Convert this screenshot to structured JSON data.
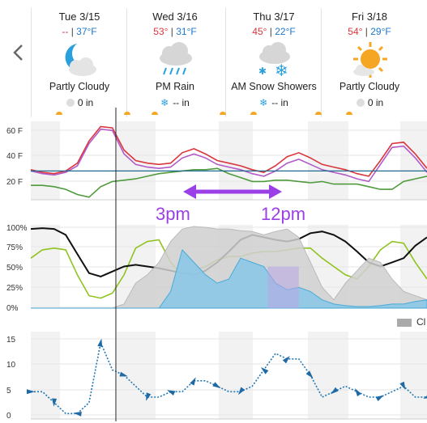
{
  "days": [
    {
      "label": "Tue 3/15",
      "hi": "--",
      "lo": "37°F",
      "condition": "Partly Cloudy",
      "precip": "0 in",
      "icon": "moon-cloud-icon",
      "precip_icon": "precip-dot-icon"
    },
    {
      "label": "Wed 3/16",
      "hi": "53°",
      "lo": "31°F",
      "condition": "PM Rain",
      "precip": "-- in",
      "icon": "rain-cloud-icon",
      "precip_icon": "snowflake-icon"
    },
    {
      "label": "Thu 3/17",
      "hi": "45°",
      "lo": "22°F",
      "condition": "AM Snow Showers",
      "precip": "-- in",
      "icon": "snow-cloud-icon",
      "precip_icon": "snowflake-icon"
    },
    {
      "label": "Fri 3/18",
      "hi": "54°",
      "lo": "29°F",
      "condition": "Partly Cloudy",
      "precip": "0 in",
      "icon": "sun-cloud-icon",
      "precip_icon": "precip-dot-icon"
    }
  ],
  "separator": "|",
  "nav": {
    "prev_icon": "chevron-left-icon"
  },
  "annotation": {
    "left_label": "3pm",
    "right_label": "12pm",
    "color": "#9b3fe6"
  },
  "colors": {
    "high": "#d9363e",
    "low": "#1f77c9",
    "annotation": "#9b3fe6"
  },
  "legend": {
    "label": "Cl"
  },
  "chart_data": [
    {
      "type": "line",
      "yticks": [
        "60 F",
        "40 F",
        "20 F"
      ],
      "ylim": [
        10,
        70
      ],
      "x_hours": [
        0,
        3,
        6,
        9,
        12,
        15,
        18,
        21,
        24,
        27,
        30,
        33,
        36,
        39,
        42,
        45,
        48,
        51,
        54,
        57,
        60,
        63,
        66,
        69,
        72,
        75,
        78,
        81,
        84,
        87,
        90,
        93,
        96,
        99,
        102
      ],
      "series": [
        {
          "id": "temperature",
          "color": "#d9363e",
          "values": [
            33,
            31,
            30,
            32,
            38,
            55,
            66,
            65,
            48,
            40,
            38,
            37,
            38,
            46,
            49,
            45,
            40,
            38,
            36,
            33,
            31,
            36,
            43,
            46,
            42,
            37,
            35,
            33,
            30,
            28,
            40,
            53,
            54,
            45,
            34
          ]
        },
        {
          "id": "heat-index",
          "color": "#b25ac8",
          "values": [
            32,
            30,
            29,
            31,
            36,
            53,
            64,
            63,
            45,
            37,
            35,
            34,
            35,
            42,
            45,
            42,
            37,
            35,
            33,
            30,
            28,
            32,
            38,
            41,
            37,
            33,
            31,
            29,
            26,
            24,
            37,
            50,
            51,
            42,
            31
          ]
        },
        {
          "id": "dew-point",
          "color": "#4f9a3c",
          "values": [
            21,
            21,
            20,
            18,
            14,
            12,
            20,
            24,
            25,
            26,
            28,
            30,
            31,
            32,
            33,
            33,
            34,
            30,
            27,
            24,
            24,
            25,
            25,
            24,
            23,
            24,
            22,
            22,
            22,
            20,
            18,
            18,
            24,
            26,
            28
          ]
        },
        {
          "id": "freezing-line",
          "color": "#1f6a8f",
          "values": [
            32,
            32,
            32,
            32,
            32,
            32,
            32,
            32,
            32,
            32,
            32,
            32,
            32,
            32,
            32,
            32,
            32,
            32,
            32,
            32,
            32,
            32,
            32,
            32,
            32,
            32,
            32,
            32,
            32,
            32,
            32,
            32,
            32,
            32,
            32
          ]
        }
      ]
    },
    {
      "type": "line",
      "yticks": [
        "100%",
        "75%",
        "50%",
        "25%",
        "0%"
      ],
      "ylim": [
        0,
        100
      ],
      "x_hours": [
        0,
        3,
        6,
        9,
        12,
        15,
        18,
        21,
        24,
        27,
        30,
        33,
        36,
        39,
        42,
        45,
        48,
        51,
        54,
        57,
        60,
        63,
        66,
        69,
        72,
        75,
        78,
        81,
        84,
        87,
        90,
        93,
        96,
        99,
        102
      ],
      "series": [
        {
          "id": "humidity",
          "color": "#8fc31f",
          "values": [
            60,
            70,
            72,
            70,
            40,
            15,
            12,
            18,
            40,
            72,
            80,
            82,
            55,
            40,
            45,
            50,
            58,
            62,
            62,
            66,
            68,
            68,
            70,
            72,
            72,
            60,
            50,
            40,
            35,
            50,
            70,
            80,
            78,
            55,
            35
          ]
        },
        {
          "id": "sky-cover",
          "color": "#111111",
          "values": [
            95,
            96,
            95,
            88,
            65,
            42,
            38,
            44,
            50,
            52,
            50,
            48,
            45,
            42,
            40,
            45,
            55,
            68,
            82,
            88,
            85,
            82,
            80,
            83,
            90,
            92,
            88,
            80,
            68,
            55,
            50,
            55,
            60,
            75,
            85
          ]
        },
        {
          "id": "cloud-area",
          "color": "#d0d0d0",
          "values": [
            0,
            0,
            0,
            0,
            0,
            0,
            0,
            0,
            5,
            30,
            40,
            55,
            80,
            95,
            98,
            97,
            95,
            95,
            93,
            92,
            88,
            92,
            95,
            85,
            55,
            25,
            10,
            30,
            45,
            60,
            55,
            35,
            20,
            15,
            10
          ]
        },
        {
          "id": "precip-chance",
          "color": "#8cc8e6",
          "values": [
            0,
            0,
            0,
            0,
            0,
            0,
            0,
            0,
            0,
            0,
            0,
            0,
            20,
            70,
            55,
            40,
            30,
            35,
            60,
            55,
            50,
            30,
            22,
            25,
            20,
            10,
            5,
            3,
            2,
            2,
            3,
            5,
            5,
            8,
            10
          ]
        }
      ]
    },
    {
      "type": "line",
      "yticks": [
        "15",
        "10",
        "5",
        "0"
      ],
      "ylim": [
        0,
        16
      ],
      "x_hours": [
        0,
        3,
        6,
        9,
        12,
        15,
        18,
        21,
        24,
        27,
        30,
        33,
        36,
        39,
        42,
        45,
        48,
        51,
        54,
        57,
        60,
        63,
        66,
        69,
        72,
        75,
        78,
        81,
        84,
        87,
        90,
        93,
        96,
        99,
        102
      ],
      "series": [
        {
          "id": "wind-speed",
          "color": "#1f77b4",
          "values": [
            5,
            5,
            3,
            1,
            1,
            3,
            14,
            9,
            8,
            6,
            4,
            4,
            5,
            5,
            7,
            7,
            6,
            5,
            5,
            6,
            9,
            12,
            11,
            11,
            8,
            4,
            5,
            6,
            5,
            4,
            4,
            5,
            6,
            4,
            4
          ]
        }
      ]
    }
  ]
}
